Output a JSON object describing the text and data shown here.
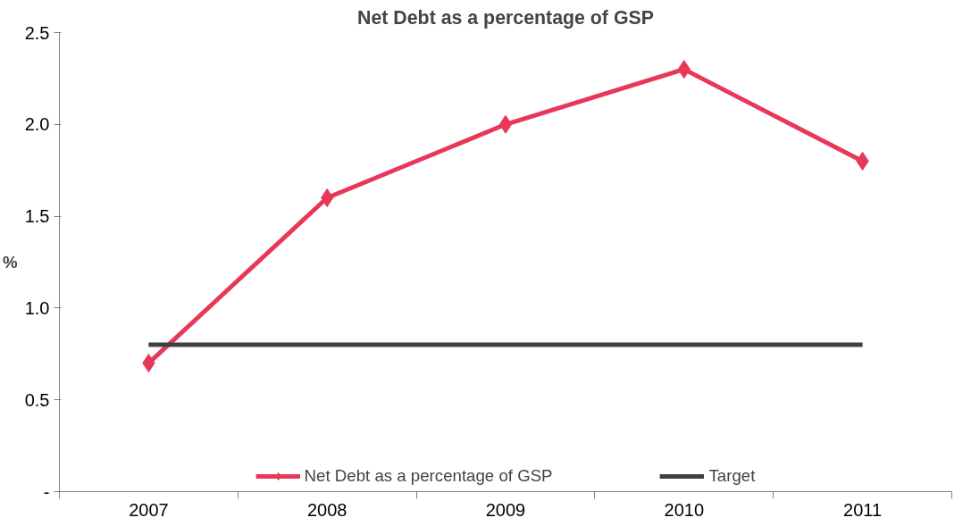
{
  "chart_data": {
    "type": "line",
    "title": "Net Debt as a percentage of GSP",
    "ylabel": "%",
    "categories": [
      "2007",
      "2008",
      "2009",
      "2010",
      "2011"
    ],
    "series": [
      {
        "name": "Net Debt as a percentage of GSP",
        "color": "#e8385a",
        "values": [
          0.7,
          1.6,
          2.0,
          2.3,
          1.8
        ]
      },
      {
        "name": "Target",
        "color": "#404040",
        "values": [
          0.8,
          0.8,
          0.8,
          0.8,
          0.8
        ],
        "marker": "none"
      }
    ],
    "ylim": [
      0,
      2.5
    ],
    "yticks": [
      {
        "value": 0,
        "label": "-"
      },
      {
        "value": 0.5,
        "label": "0.5"
      },
      {
        "value": 1.0,
        "label": "1.0"
      },
      {
        "value": 1.5,
        "label": "1.5"
      },
      {
        "value": 2.0,
        "label": "2.0"
      },
      {
        "value": 2.5,
        "label": "2.5"
      }
    ],
    "grid": false,
    "legend": "bottom",
    "marker": "diamond",
    "line_style": "solid"
  }
}
